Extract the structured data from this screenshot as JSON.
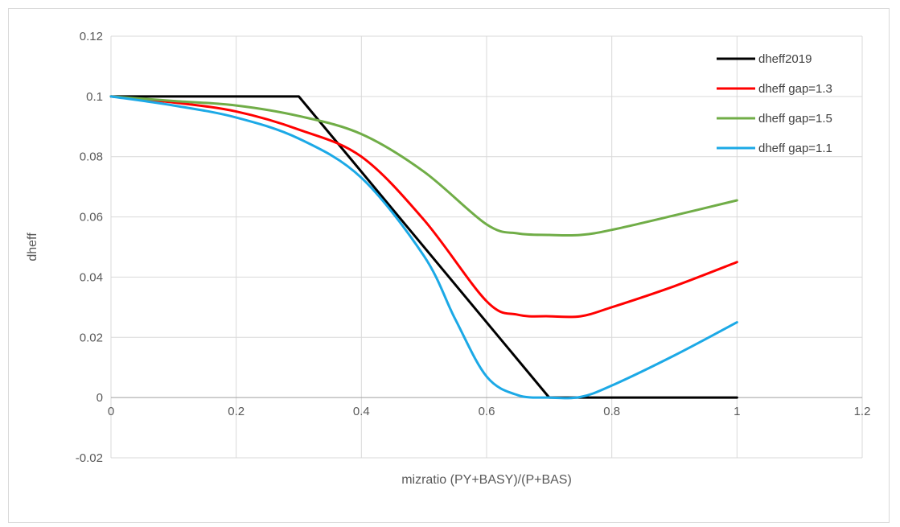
{
  "chart_data": {
    "type": "line",
    "title": "",
    "xlabel": "mizratio (PY+BASY)/(P+BAS)",
    "ylabel": "dheff",
    "xlim": [
      0,
      1.2
    ],
    "ylim": [
      -0.02,
      0.12
    ],
    "x_ticks": [
      "0",
      "0.2",
      "0.4",
      "0.6",
      "0.8",
      "1",
      "1.2"
    ],
    "y_ticks": [
      "-0.02",
      "0",
      "0.02",
      "0.04",
      "0.06",
      "0.08",
      "0.1",
      "0.12"
    ],
    "grid": true,
    "legend_position": "top-right",
    "series": [
      {
        "name": "dheff2019",
        "color": "#000000",
        "x": [
          0,
          0.3,
          0.7,
          1.0
        ],
        "y": [
          0.1,
          0.1,
          0,
          0
        ]
      },
      {
        "name": "dheff gap=1.3",
        "color": "#ff0000",
        "x": [
          0,
          0.1,
          0.2,
          0.3,
          0.4,
          0.5,
          0.6,
          0.65,
          0.7,
          0.75,
          0.8,
          0.9,
          1.0
        ],
        "y": [
          0.1,
          0.098,
          0.095,
          0.089,
          0.08,
          0.059,
          0.032,
          0.0275,
          0.027,
          0.027,
          0.03,
          0.037,
          0.045
        ]
      },
      {
        "name": "dheff gap=1.5",
        "color": "#70ad47",
        "x": [
          0,
          0.1,
          0.2,
          0.3,
          0.4,
          0.5,
          0.6,
          0.65,
          0.7,
          0.75,
          0.8,
          0.9,
          1.0
        ],
        "y": [
          0.1,
          0.0985,
          0.097,
          0.0935,
          0.0875,
          0.075,
          0.0575,
          0.0545,
          0.054,
          0.054,
          0.0557,
          0.0605,
          0.0655
        ]
      },
      {
        "name": "dheff gap=1.1",
        "color": "#1ca9e6",
        "x": [
          0,
          0.1,
          0.2,
          0.3,
          0.4,
          0.5,
          0.55,
          0.6,
          0.65,
          0.7,
          0.75,
          0.8,
          0.9,
          1.0
        ],
        "y": [
          0.1,
          0.097,
          0.093,
          0.086,
          0.073,
          0.047,
          0.026,
          0.007,
          0.0008,
          0,
          0.0002,
          0.004,
          0.014,
          0.025
        ]
      }
    ]
  }
}
